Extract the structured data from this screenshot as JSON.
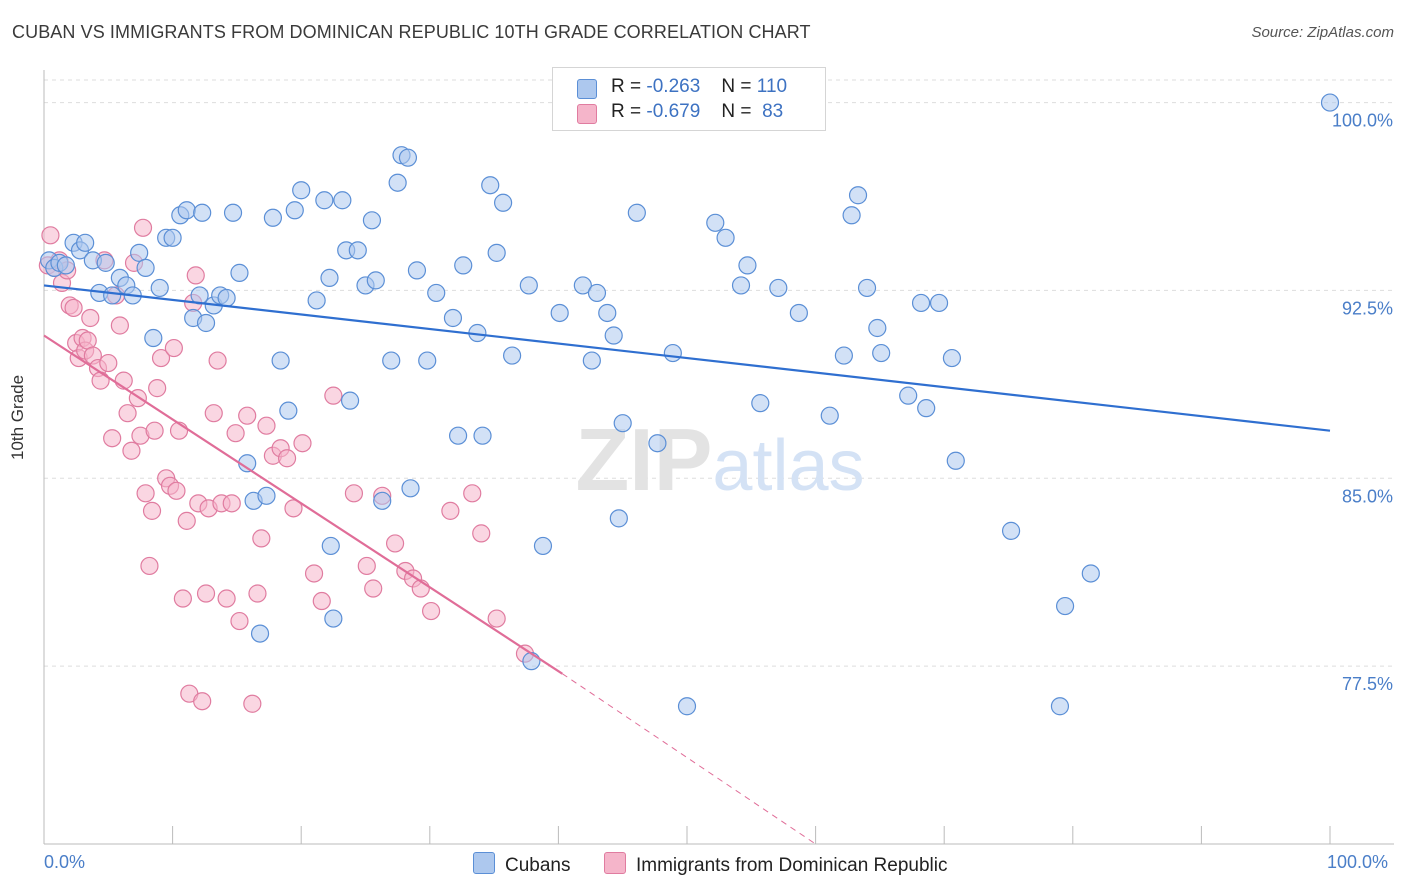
{
  "title": "CUBAN VS IMMIGRANTS FROM DOMINICAN REPUBLIC 10TH GRADE CORRELATION CHART",
  "source": "Source: ZipAtlas.com",
  "watermark": "ZIPatlas",
  "legend": {
    "rows": [
      {
        "r_label": "R =",
        "r_value": "-0.263",
        "n_label": "N =",
        "n_value": "110"
      },
      {
        "r_label": "R =",
        "r_value": "-0.679",
        "n_label": "N =",
        "n_value": "83"
      }
    ]
  },
  "colors": {
    "blue_fill": "#adc8ee",
    "blue_stroke": "#5b8fd6",
    "blue_line": "#2f6fd0",
    "pink_fill": "#f5b5ca",
    "pink_stroke": "#e07ca0",
    "pink_line": "#e06d98",
    "axis_text": "#4a7ec8",
    "grid": "#dddddd"
  },
  "chart_data": {
    "type": "scatter",
    "title": "CUBAN VS IMMIGRANTS FROM DOMINICAN REPUBLIC 10TH GRADE CORRELATION CHART",
    "xlabel": "",
    "ylabel": "10th Grade",
    "xlim": [
      0,
      100
    ],
    "ylim": [
      70.4,
      101.3
    ],
    "x_tick_labels": [
      "0.0%",
      "100.0%"
    ],
    "y_ticks": [
      77.5,
      85.0,
      92.5,
      100.0
    ],
    "y_tick_labels": [
      "77.5%",
      "85.0%",
      "92.5%",
      "100.0%"
    ],
    "grid": "horizontal dashed",
    "legend_position": "bottom",
    "series": [
      {
        "name": "Cubans",
        "color": "#5b8fd6",
        "trend": {
          "x": [
            0,
            100
          ],
          "y": [
            92.7,
            86.9
          ]
        },
        "points": [
          [
            0.4,
            93.7
          ],
          [
            0.8,
            93.4
          ],
          [
            1.2,
            93.6
          ],
          [
            1.7,
            93.5
          ],
          [
            2.3,
            94.4
          ],
          [
            2.8,
            94.1
          ],
          [
            3.2,
            94.4
          ],
          [
            3.8,
            93.7
          ],
          [
            4.3,
            92.4
          ],
          [
            4.8,
            93.6
          ],
          [
            5.3,
            92.3
          ],
          [
            5.9,
            93.0
          ],
          [
            6.4,
            92.7
          ],
          [
            6.9,
            92.3
          ],
          [
            7.4,
            94.0
          ],
          [
            7.9,
            93.4
          ],
          [
            8.5,
            90.6
          ],
          [
            9.0,
            92.6
          ],
          [
            9.5,
            94.6
          ],
          [
            10.0,
            94.6
          ],
          [
            10.6,
            95.5
          ],
          [
            11.1,
            95.7
          ],
          [
            11.6,
            91.4
          ],
          [
            12.1,
            92.3
          ],
          [
            12.6,
            91.2
          ],
          [
            13.2,
            91.9
          ],
          [
            13.7,
            92.3
          ],
          [
            14.2,
            92.2
          ],
          [
            14.7,
            95.6
          ],
          [
            15.2,
            93.2
          ],
          [
            15.8,
            85.6
          ],
          [
            16.3,
            84.1
          ],
          [
            16.8,
            78.8
          ],
          [
            17.3,
            84.3
          ],
          [
            17.8,
            95.4
          ],
          [
            18.4,
            89.7
          ],
          [
            19.0,
            87.7
          ],
          [
            19.5,
            95.7
          ],
          [
            20.0,
            96.5
          ],
          [
            21.2,
            92.1
          ],
          [
            21.8,
            96.1
          ],
          [
            22.2,
            93.0
          ],
          [
            22.3,
            82.3
          ],
          [
            22.5,
            79.4
          ],
          [
            23.2,
            96.1
          ],
          [
            23.5,
            94.1
          ],
          [
            23.8,
            88.1
          ],
          [
            24.4,
            94.1
          ],
          [
            25.0,
            92.7
          ],
          [
            25.5,
            95.3
          ],
          [
            25.8,
            92.9
          ],
          [
            26.3,
            84.1
          ],
          [
            27.0,
            89.7
          ],
          [
            27.5,
            96.8
          ],
          [
            27.8,
            97.9
          ],
          [
            28.3,
            97.8
          ],
          [
            28.5,
            84.6
          ],
          [
            29.0,
            93.3
          ],
          [
            29.8,
            89.7
          ],
          [
            30.5,
            92.4
          ],
          [
            31.8,
            91.4
          ],
          [
            32.2,
            86.7
          ],
          [
            32.6,
            93.5
          ],
          [
            33.7,
            90.8
          ],
          [
            34.1,
            86.7
          ],
          [
            34.7,
            96.7
          ],
          [
            35.2,
            94.0
          ],
          [
            35.7,
            96.0
          ],
          [
            36.4,
            89.9
          ],
          [
            37.7,
            92.7
          ],
          [
            38.8,
            82.3
          ],
          [
            40.1,
            91.6
          ],
          [
            41.9,
            92.7
          ],
          [
            42.6,
            89.7
          ],
          [
            43.0,
            92.4
          ],
          [
            43.8,
            91.6
          ],
          [
            44.3,
            90.7
          ],
          [
            44.7,
            83.4
          ],
          [
            45.0,
            87.2
          ],
          [
            46.1,
            95.6
          ],
          [
            47.7,
            86.4
          ],
          [
            48.9,
            90.0
          ],
          [
            50.0,
            75.9
          ],
          [
            52.2,
            95.2
          ],
          [
            53.0,
            94.6
          ],
          [
            54.2,
            92.7
          ],
          [
            54.7,
            93.5
          ],
          [
            55.7,
            88.0
          ],
          [
            57.1,
            92.6
          ],
          [
            58.7,
            91.6
          ],
          [
            61.1,
            87.5
          ],
          [
            62.2,
            89.9
          ],
          [
            62.8,
            95.5
          ],
          [
            63.3,
            96.3
          ],
          [
            64.0,
            92.6
          ],
          [
            64.8,
            91.0
          ],
          [
            65.1,
            90.0
          ],
          [
            67.2,
            88.3
          ],
          [
            68.2,
            92.0
          ],
          [
            68.6,
            87.8
          ],
          [
            69.6,
            92.0
          ],
          [
            70.6,
            89.8
          ],
          [
            70.9,
            85.7
          ],
          [
            75.2,
            82.9
          ],
          [
            79.4,
            79.9
          ],
          [
            81.4,
            81.2
          ],
          [
            79.0,
            75.9
          ],
          [
            100.0,
            100.0
          ],
          [
            37.9,
            77.7
          ],
          [
            12.3,
            95.6
          ]
        ]
      },
      {
        "name": "Immigrants from Dominican Republic",
        "color": "#e07ca0",
        "trend": {
          "x": [
            0,
            40.3
          ],
          "y": [
            90.7,
            77.2
          ]
        },
        "trend_extension": {
          "x": [
            40.3,
            60.0
          ],
          "y": [
            77.2,
            70.4
          ]
        },
        "points": [
          [
            0.3,
            93.5
          ],
          [
            0.5,
            94.7
          ],
          [
            0.8,
            93.4
          ],
          [
            1.2,
            93.7
          ],
          [
            1.4,
            92.8
          ],
          [
            1.8,
            93.3
          ],
          [
            2.0,
            91.9
          ],
          [
            2.3,
            91.8
          ],
          [
            2.5,
            90.4
          ],
          [
            2.7,
            89.8
          ],
          [
            3.0,
            90.6
          ],
          [
            3.2,
            90.1
          ],
          [
            3.4,
            90.5
          ],
          [
            3.6,
            91.4
          ],
          [
            3.8,
            89.9
          ],
          [
            4.2,
            89.4
          ],
          [
            4.4,
            88.9
          ],
          [
            4.7,
            93.7
          ],
          [
            5.0,
            89.6
          ],
          [
            5.3,
            86.6
          ],
          [
            5.6,
            92.3
          ],
          [
            5.9,
            91.1
          ],
          [
            6.2,
            88.9
          ],
          [
            6.5,
            87.6
          ],
          [
            6.8,
            86.1
          ],
          [
            7.0,
            93.6
          ],
          [
            7.3,
            88.2
          ],
          [
            7.5,
            86.7
          ],
          [
            7.7,
            95.0
          ],
          [
            7.9,
            84.4
          ],
          [
            8.2,
            81.5
          ],
          [
            8.4,
            83.7
          ],
          [
            8.6,
            86.9
          ],
          [
            8.8,
            88.6
          ],
          [
            9.1,
            89.8
          ],
          [
            9.5,
            85.0
          ],
          [
            9.8,
            84.7
          ],
          [
            10.1,
            90.2
          ],
          [
            10.3,
            84.5
          ],
          [
            10.5,
            86.9
          ],
          [
            10.8,
            80.2
          ],
          [
            11.1,
            83.3
          ],
          [
            11.3,
            76.4
          ],
          [
            11.6,
            92.0
          ],
          [
            11.8,
            93.1
          ],
          [
            12.0,
            84.0
          ],
          [
            12.3,
            76.1
          ],
          [
            12.6,
            80.4
          ],
          [
            12.8,
            83.8
          ],
          [
            13.2,
            87.6
          ],
          [
            13.5,
            89.7
          ],
          [
            13.8,
            84.0
          ],
          [
            14.2,
            80.2
          ],
          [
            14.6,
            84.0
          ],
          [
            14.9,
            86.8
          ],
          [
            15.2,
            79.3
          ],
          [
            15.8,
            87.5
          ],
          [
            16.2,
            76.0
          ],
          [
            16.6,
            80.4
          ],
          [
            16.9,
            82.6
          ],
          [
            17.3,
            87.1
          ],
          [
            17.8,
            85.9
          ],
          [
            18.4,
            86.2
          ],
          [
            18.9,
            85.8
          ],
          [
            19.4,
            83.8
          ],
          [
            20.1,
            86.4
          ],
          [
            21.0,
            81.2
          ],
          [
            21.6,
            80.1
          ],
          [
            22.5,
            88.3
          ],
          [
            24.1,
            84.4
          ],
          [
            25.1,
            81.5
          ],
          [
            25.6,
            80.6
          ],
          [
            26.3,
            84.3
          ],
          [
            27.3,
            82.4
          ],
          [
            28.1,
            81.3
          ],
          [
            28.7,
            81.0
          ],
          [
            29.3,
            80.6
          ],
          [
            30.1,
            79.7
          ],
          [
            31.6,
            83.7
          ],
          [
            33.3,
            84.4
          ],
          [
            34.0,
            82.8
          ],
          [
            35.2,
            79.4
          ],
          [
            37.4,
            78.0
          ]
        ]
      }
    ]
  }
}
